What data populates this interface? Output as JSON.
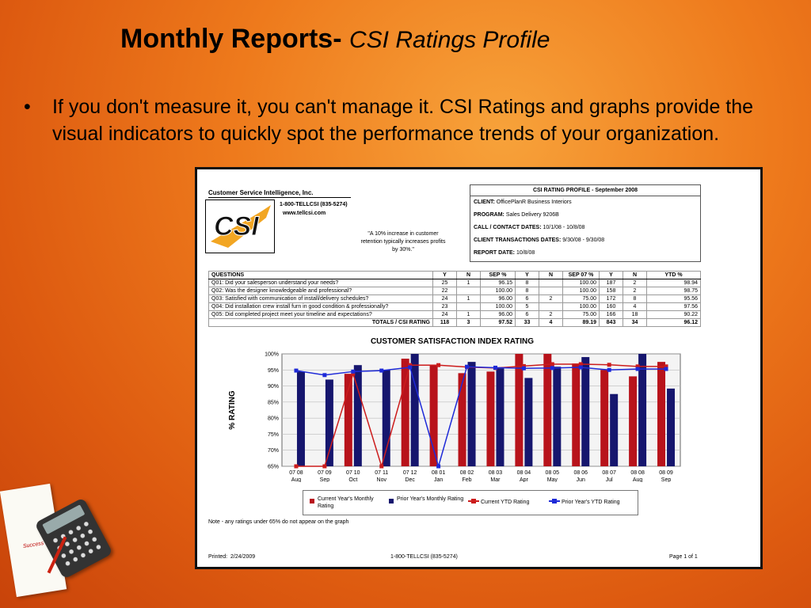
{
  "slide": {
    "title_main": "Monthly Reports-",
    "title_sub": "CSI Ratings Profile",
    "bullet": "If you don't measure it, you can't manage it.  CSI Ratings and graphs provide the visual indicators to quickly spot the performance trends of your organization."
  },
  "report": {
    "company": "Customer Service Intelligence, Inc.",
    "phone": "1-800-TELLCSI (835-5274)",
    "website": "www.tellcsi.com",
    "logo_text": "CSI",
    "quote": "\"A 10% increase in customer retention typically increases profits by 30%.\"",
    "profile": {
      "title": "CSI RATING PROFILE - September 2008",
      "client_label": "CLIENT:",
      "client": "OfficePlanR Business Interiors",
      "program_label": "PROGRAM:",
      "program": "Sales Delivery  9206B",
      "call_dates_label": "CALL / CONTACT DATES:",
      "call_dates": "10/1/08  -  10/8/08",
      "transaction_dates_label": "CLIENT TRANSACTIONS DATES:",
      "transaction_dates": "9/30/08  -  9/30/08",
      "report_date_label": "REPORT DATE:",
      "report_date": "10/8/08"
    },
    "table": {
      "headers": [
        "QUESTIONS",
        "Y",
        "N",
        "SEP %",
        "Y",
        "N",
        "SEP 07 %",
        "Y",
        "N",
        "YTD %"
      ],
      "rows": [
        [
          "Q01: Did your salesperson understand your needs?",
          "25",
          "1",
          "96.15",
          "8",
          "",
          "100.00",
          "187",
          "2",
          "98.94"
        ],
        [
          "Q02: Was the designer knowledgeable and professional?",
          "22",
          "",
          "100.00",
          "8",
          "",
          "100.00",
          "158",
          "2",
          "98.75"
        ],
        [
          "Q03: Satisfied with communication of install/delivery schedules?",
          "24",
          "1",
          "96.00",
          "6",
          "2",
          "75.00",
          "172",
          "8",
          "95.56"
        ],
        [
          "Q04: Did installation crew install furn  in  good condition & professionally?",
          "23",
          "",
          "100.00",
          "5",
          "",
          "100.00",
          "160",
          "4",
          "97.56"
        ],
        [
          "Q05: Did completed project meet your timeline and expectations?",
          "24",
          "1",
          "96.00",
          "6",
          "2",
          "75.00",
          "166",
          "18",
          "90.22"
        ]
      ],
      "totals": [
        "TOTALS / CSI RATING",
        "118",
        "3",
        "97.52",
        "33",
        "4",
        "89.19",
        "843",
        "34",
        "96.12"
      ]
    },
    "note": "Note - any ratings under 65% do not appear on the graph",
    "printed_label": "Printed:",
    "printed_date": "2/24/2009",
    "footer_phone": "1-800-TELLCSI (835-5274)",
    "page": "Page 1 of 1"
  },
  "chart_data": {
    "type": "bar",
    "title": "CUSTOMER SATISFACTION INDEX RATING",
    "ylabel": "% RATING",
    "ylim": [
      65,
      100
    ],
    "yticks": [
      "100%",
      "95%",
      "90%",
      "85%",
      "80%",
      "75%",
      "70%",
      "65%"
    ],
    "categories": [
      [
        "07 08",
        "Aug"
      ],
      [
        "07 09",
        "Sep"
      ],
      [
        "07 10",
        "Oct"
      ],
      [
        "07 11",
        "Nov"
      ],
      [
        "07 12",
        "Dec"
      ],
      [
        "08 01",
        "Jan"
      ],
      [
        "08 02",
        "Feb"
      ],
      [
        "08 03",
        "Mar"
      ],
      [
        "08 04",
        "Apr"
      ],
      [
        "08 05",
        "May"
      ],
      [
        "08 06",
        "Jun"
      ],
      [
        "08 07",
        "Jul"
      ],
      [
        "08 08",
        "Aug"
      ],
      [
        "08 09",
        "Sep"
      ]
    ],
    "series": [
      {
        "name": "Current Year's Monthly Rating",
        "type": "bar",
        "color": "#b8131b",
        "values": [
          null,
          null,
          93.8,
          null,
          98.5,
          96.5,
          94.0,
          94.5,
          100,
          100,
          97.0,
          95.0,
          93.0,
          97.5
        ]
      },
      {
        "name": "Prior Year's Monthly Rating",
        "type": "bar",
        "color": "#16166e",
        "values": [
          94.5,
          92.0,
          96.5,
          95.0,
          100,
          null,
          97.5,
          95.5,
          92.5,
          96.0,
          99.0,
          87.5,
          100,
          89.2
        ]
      },
      {
        "name": "Current YTD Rating",
        "type": "line",
        "color": "#cc1c1c",
        "values": [
          null,
          null,
          93.8,
          null,
          96.5,
          96.5,
          95.9,
          95.6,
          96.2,
          96.8,
          96.8,
          96.6,
          96.1,
          96.1
        ]
      },
      {
        "name": "Prior Year's YTD Rating",
        "type": "line",
        "color": "#1e2ad8",
        "values": [
          94.8,
          93.4,
          94.5,
          94.8,
          95.8,
          65.0,
          96.0,
          95.7,
          95.5,
          95.6,
          95.8,
          95.0,
          95.3,
          95.3
        ]
      }
    ],
    "grid": true,
    "legend": "bottom"
  }
}
